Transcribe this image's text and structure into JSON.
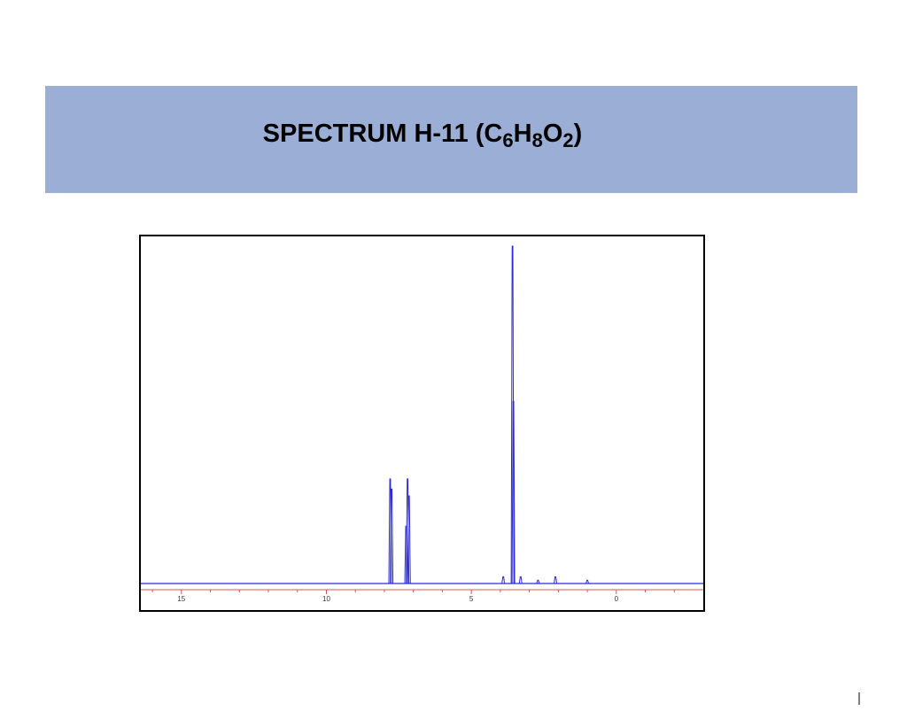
{
  "chart_data": {
    "type": "spectrum",
    "title": [
      "SPECTRUM H-11 (C",
      "6",
      "H",
      "8",
      "O",
      "2",
      ")"
    ],
    "x": [
      7.8,
      7.75,
      7.25,
      7.2,
      7.15,
      3.58,
      3.55,
      3.9,
      3.3,
      2.7,
      2.1,
      1.0
    ],
    "values": [
      31,
      28,
      17,
      31,
      26,
      100,
      54,
      2,
      2,
      1,
      2,
      1
    ],
    "color": "#2b2bd6",
    "xlim": [
      16.4,
      -3
    ],
    "ylim": [
      0,
      100
    ],
    "xticks": [
      15,
      10,
      5,
      0
    ],
    "xminorticks": [
      16,
      14,
      13,
      12,
      11,
      9,
      8,
      7,
      6,
      4,
      3,
      2,
      1,
      -1,
      -2
    ],
    "axis_color": "#e05050"
  }
}
